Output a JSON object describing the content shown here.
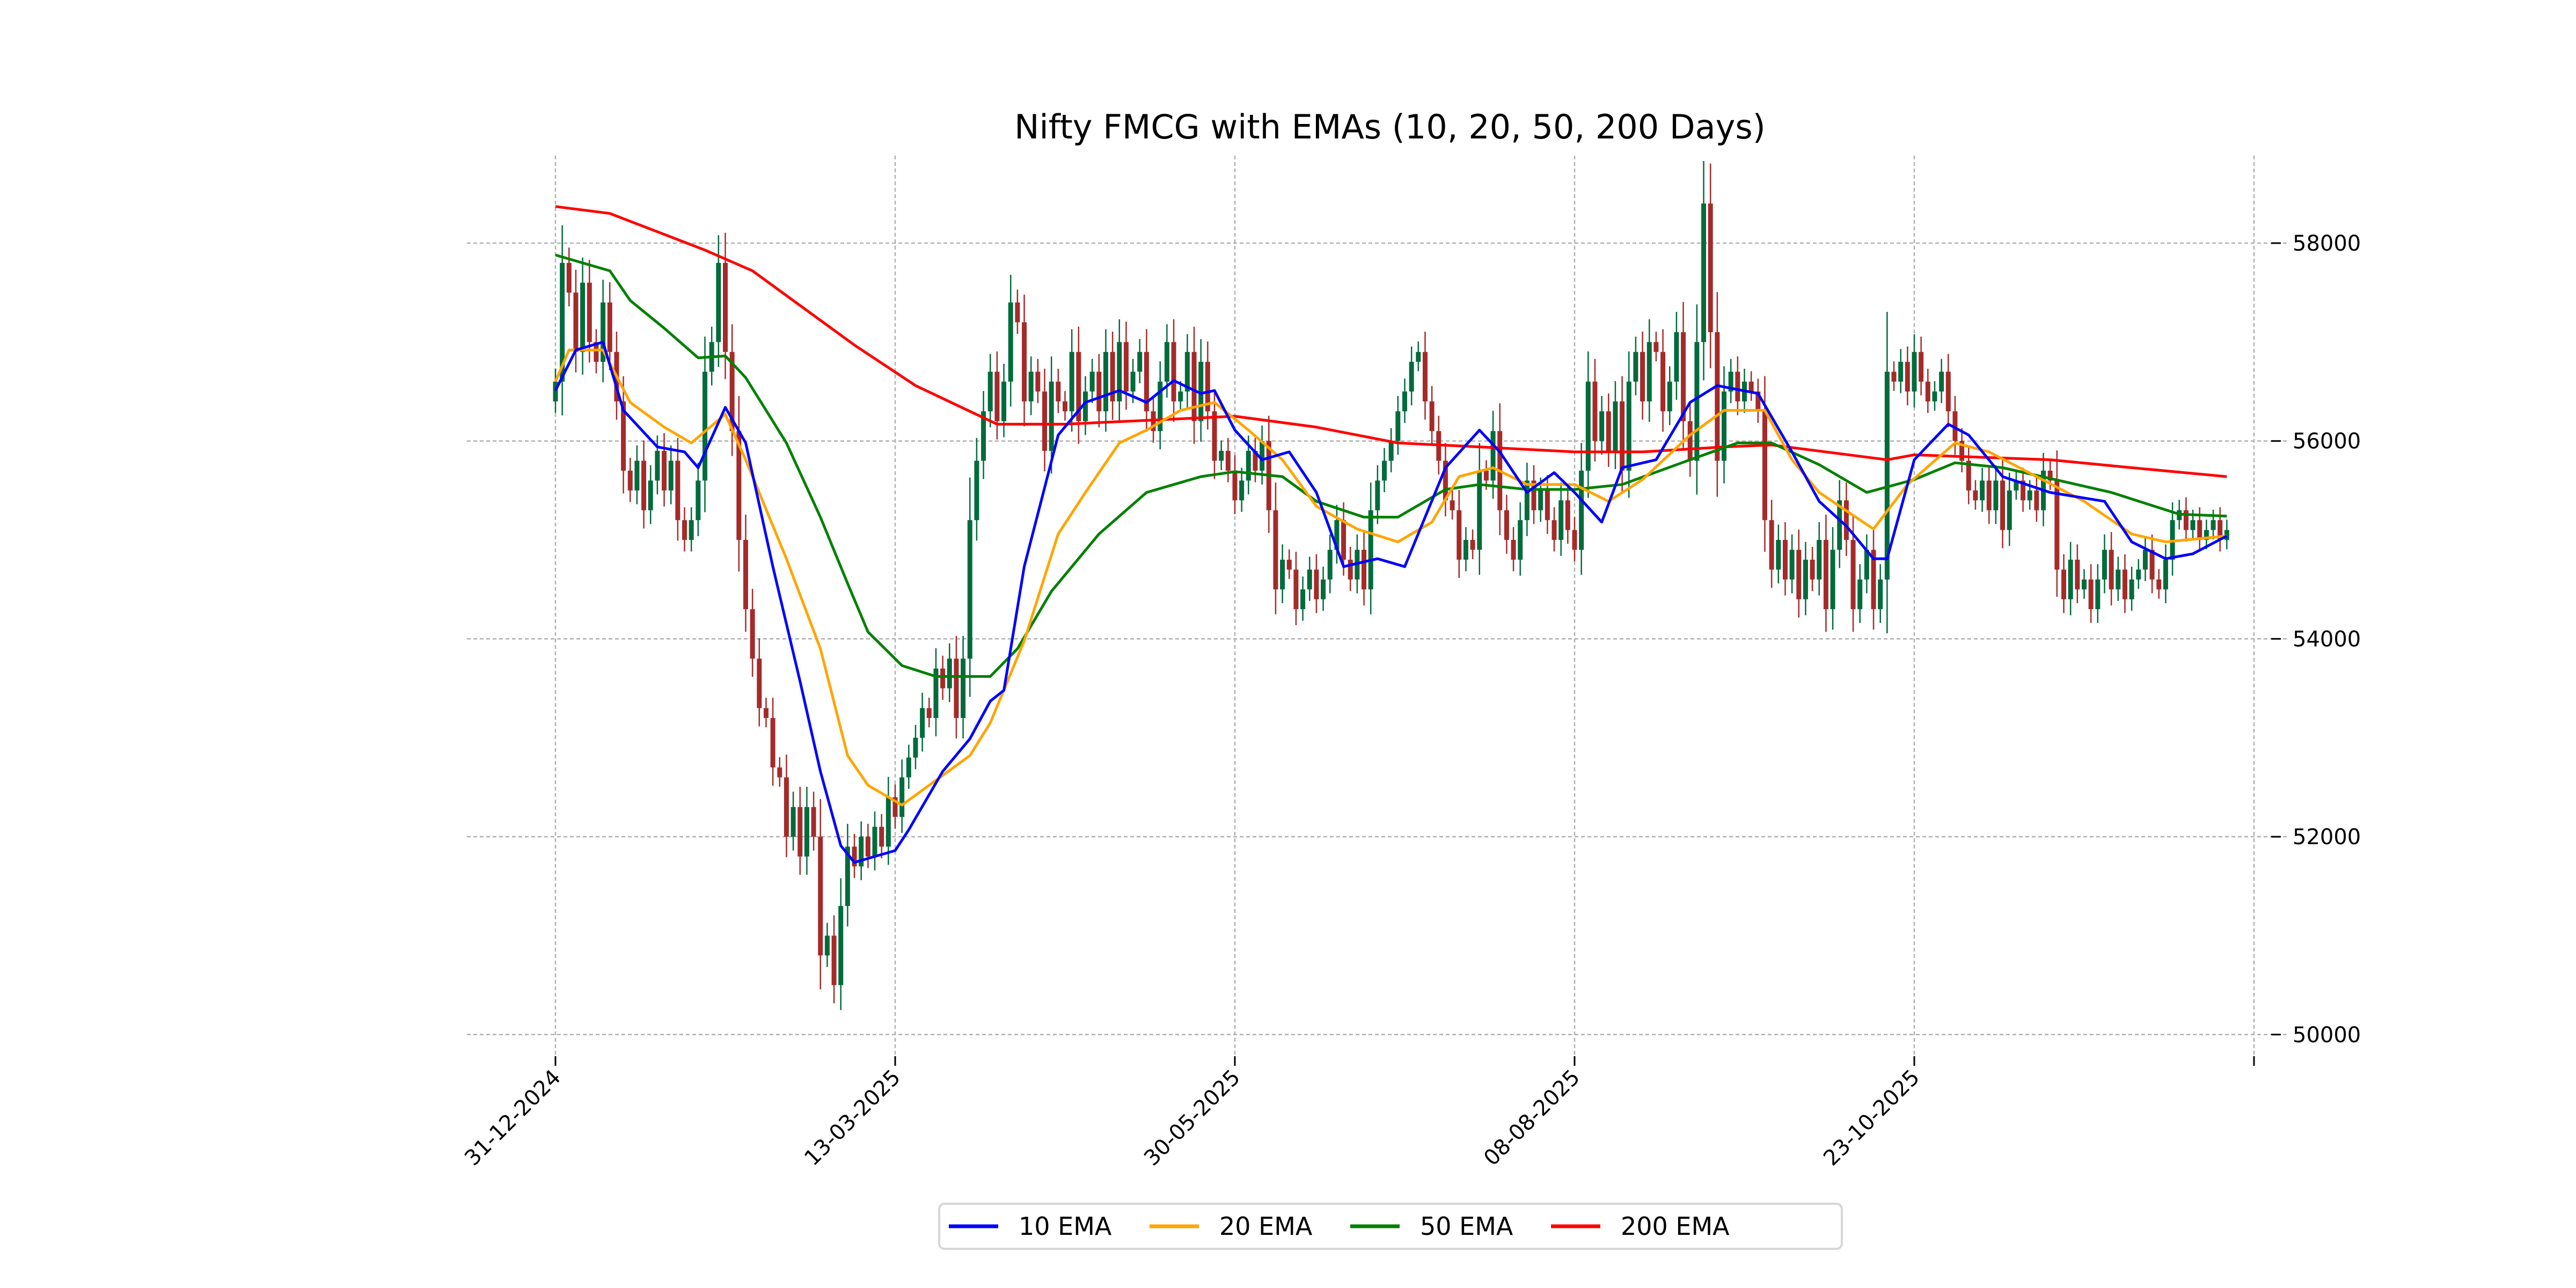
{
  "chart_data": {
    "type": "candlestick-line",
    "title": "Nifty FMCG with EMAs (10, 20, 50, 200 Days)",
    "xlabel": "",
    "ylabel": "",
    "ylim": [
      49800,
      58900
    ],
    "yticks": [
      50000,
      52000,
      54000,
      56000,
      58000
    ],
    "ytick_labels": [
      "50000",
      "52000",
      "54000",
      "56000",
      "58000"
    ],
    "xticks": [
      0,
      50,
      100,
      150,
      200,
      250
    ],
    "xtick_labels": [
      "31-12-2024",
      "13-03-2025",
      "30-05-2025",
      "08-08-2025",
      "23-10-2025",
      ""
    ],
    "xlim": [
      -4,
      254
    ],
    "grid": true,
    "legend_position": "bottom-center",
    "up_color": "#006b3c",
    "down_color": "#a52a2a",
    "first_open": 56400,
    "close": [
      56600,
      57800,
      57500,
      56900,
      57600,
      57000,
      56800,
      57400,
      56900,
      56400,
      55700,
      55500,
      55800,
      55300,
      55600,
      55900,
      55500,
      55800,
      55200,
      55000,
      55200,
      55600,
      56700,
      57000,
      57800,
      56900,
      56100,
      55000,
      54300,
      53800,
      53300,
      53200,
      52700,
      52600,
      52000,
      52300,
      51800,
      52300,
      52000,
      50800,
      51000,
      50500,
      51300,
      51900,
      51700,
      52000,
      51800,
      52100,
      51900,
      52400,
      52200,
      52600,
      52800,
      53000,
      53300,
      53200,
      53700,
      53500,
      53800,
      53200,
      53800,
      55200,
      55800,
      56300,
      56700,
      56200,
      56600,
      57400,
      57200,
      56400,
      56700,
      56500,
      55900,
      56600,
      56400,
      56300,
      56900,
      56200,
      56500,
      56700,
      56300,
      56900,
      56400,
      57000,
      56500,
      56700,
      56900,
      56300,
      56100,
      56600,
      57000,
      56400,
      56500,
      56900,
      56200,
      56800,
      56300,
      55800,
      55900,
      55700,
      55400,
      55600,
      55900,
      55700,
      56000,
      55300,
      54500,
      54800,
      54700,
      54300,
      54500,
      54700,
      54400,
      54600,
      54900,
      55200,
      54800,
      54600,
      54900,
      54500,
      55300,
      55600,
      55800,
      56000,
      56300,
      56500,
      56800,
      56900,
      56400,
      56100,
      55800,
      55400,
      55300,
      54800,
      55000,
      54900,
      55700,
      55600,
      56100,
      55300,
      55000,
      54800,
      55200,
      55600,
      55300,
      55500,
      55200,
      55000,
      55400,
      55100,
      54900,
      55700,
      56600,
      56000,
      56300,
      55900,
      56400,
      55700,
      56600,
      56900,
      56400,
      57000,
      56900,
      56300,
      56600,
      57100,
      56200,
      55800,
      57000,
      58400,
      57100,
      55800,
      56500,
      56700,
      56400,
      56600,
      56500,
      56300,
      55200,
      54700,
      55000,
      54600,
      54900,
      54400,
      54800,
      54600,
      55000,
      54300,
      54900,
      55400,
      55000,
      54300,
      54600,
      54900,
      54300,
      54600,
      56700,
      56600,
      56800,
      56500,
      56900,
      56600,
      56400,
      56500,
      56700,
      56300,
      56000,
      55800,
      55500,
      55400,
      55600,
      55300,
      55600,
      55100,
      55500,
      55600,
      55400,
      55500,
      55300,
      55700,
      55600,
      54700,
      54400,
      54800,
      54500,
      54600,
      54300,
      54600,
      54900,
      54500,
      54700,
      54400,
      54600,
      54700,
      54900,
      54600,
      54500,
      54800,
      55200,
      55300,
      55100,
      55200,
      55000,
      55100,
      55200,
      55000,
      55100
    ],
    "series": [
      {
        "name": "10 EMA",
        "color": "#0000ff",
        "points": [
          [
            0,
            56510
          ],
          [
            3,
            56920
          ],
          [
            7,
            57000
          ],
          [
            10,
            56310
          ],
          [
            15,
            55940
          ],
          [
            19,
            55890
          ],
          [
            21,
            55730
          ],
          [
            25,
            56340
          ],
          [
            28,
            55980
          ],
          [
            32,
            54730
          ],
          [
            36,
            53570
          ],
          [
            39,
            52660
          ],
          [
            42,
            51910
          ],
          [
            44,
            51740
          ],
          [
            50,
            51860
          ],
          [
            52,
            52070
          ],
          [
            57,
            52660
          ],
          [
            61,
            52990
          ],
          [
            64,
            53370
          ],
          [
            66,
            53480
          ],
          [
            69,
            54730
          ],
          [
            74,
            56060
          ],
          [
            78,
            56390
          ],
          [
            83,
            56510
          ],
          [
            87,
            56390
          ],
          [
            91,
            56610
          ],
          [
            95,
            56480
          ],
          [
            97,
            56510
          ],
          [
            100,
            56110
          ],
          [
            104,
            55810
          ],
          [
            108,
            55890
          ],
          [
            112,
            55480
          ],
          [
            116,
            54730
          ],
          [
            121,
            54810
          ],
          [
            125,
            54730
          ],
          [
            131,
            55730
          ],
          [
            136,
            56110
          ],
          [
            139,
            55890
          ],
          [
            143,
            55480
          ],
          [
            147,
            55680
          ],
          [
            150,
            55480
          ],
          [
            154,
            55180
          ],
          [
            157,
            55730
          ],
          [
            162,
            55810
          ],
          [
            167,
            56390
          ],
          [
            171,
            56560
          ],
          [
            177,
            56480
          ],
          [
            182,
            55890
          ],
          [
            186,
            55390
          ],
          [
            190,
            55140
          ],
          [
            194,
            54810
          ],
          [
            196,
            54810
          ],
          [
            200,
            55810
          ],
          [
            205,
            56170
          ],
          [
            208,
            56060
          ],
          [
            213,
            55640
          ],
          [
            220,
            55480
          ],
          [
            228,
            55390
          ],
          [
            232,
            54980
          ],
          [
            237,
            54810
          ],
          [
            241,
            54860
          ],
          [
            246,
            55040
          ]
        ]
      },
      {
        "name": "20 EMA",
        "color": "#ffa500",
        "points": [
          [
            0,
            56600
          ],
          [
            2,
            56920
          ],
          [
            7,
            56920
          ],
          [
            11,
            56390
          ],
          [
            16,
            56140
          ],
          [
            20,
            55980
          ],
          [
            25,
            56270
          ],
          [
            28,
            55810
          ],
          [
            34,
            54810
          ],
          [
            39,
            53900
          ],
          [
            43,
            52820
          ],
          [
            46,
            52520
          ],
          [
            51,
            52320
          ],
          [
            56,
            52570
          ],
          [
            61,
            52820
          ],
          [
            64,
            53150
          ],
          [
            69,
            53980
          ],
          [
            74,
            55060
          ],
          [
            78,
            55480
          ],
          [
            83,
            55980
          ],
          [
            87,
            56110
          ],
          [
            92,
            56310
          ],
          [
            97,
            56390
          ],
          [
            102,
            56110
          ],
          [
            107,
            55810
          ],
          [
            112,
            55340
          ],
          [
            118,
            55110
          ],
          [
            124,
            54980
          ],
          [
            129,
            55180
          ],
          [
            133,
            55640
          ],
          [
            138,
            55730
          ],
          [
            143,
            55560
          ],
          [
            150,
            55560
          ],
          [
            155,
            55390
          ],
          [
            160,
            55610
          ],
          [
            167,
            56060
          ],
          [
            172,
            56310
          ],
          [
            178,
            56310
          ],
          [
            182,
            55810
          ],
          [
            186,
            55480
          ],
          [
            194,
            55110
          ],
          [
            199,
            55560
          ],
          [
            206,
            55980
          ],
          [
            211,
            55890
          ],
          [
            218,
            55640
          ],
          [
            225,
            55390
          ],
          [
            232,
            55060
          ],
          [
            237,
            54980
          ],
          [
            246,
            55040
          ]
        ]
      },
      {
        "name": "50 EMA",
        "color": "#008000",
        "points": [
          [
            0,
            57880
          ],
          [
            4,
            57800
          ],
          [
            8,
            57720
          ],
          [
            11,
            57420
          ],
          [
            16,
            57140
          ],
          [
            21,
            56840
          ],
          [
            25,
            56860
          ],
          [
            28,
            56640
          ],
          [
            34,
            55980
          ],
          [
            39,
            55230
          ],
          [
            43,
            54560
          ],
          [
            46,
            54070
          ],
          [
            51,
            53730
          ],
          [
            56,
            53620
          ],
          [
            64,
            53620
          ],
          [
            68,
            53900
          ],
          [
            73,
            54480
          ],
          [
            80,
            55060
          ],
          [
            87,
            55480
          ],
          [
            95,
            55640
          ],
          [
            100,
            55690
          ],
          [
            107,
            55640
          ],
          [
            112,
            55390
          ],
          [
            119,
            55230
          ],
          [
            124,
            55230
          ],
          [
            131,
            55510
          ],
          [
            136,
            55560
          ],
          [
            143,
            55510
          ],
          [
            150,
            55510
          ],
          [
            157,
            55560
          ],
          [
            167,
            55810
          ],
          [
            174,
            55980
          ],
          [
            179,
            55980
          ],
          [
            186,
            55760
          ],
          [
            193,
            55480
          ],
          [
            200,
            55610
          ],
          [
            206,
            55780
          ],
          [
            213,
            55730
          ],
          [
            222,
            55590
          ],
          [
            229,
            55480
          ],
          [
            239,
            55260
          ],
          [
            246,
            55240
          ]
        ]
      },
      {
        "name": "200 EMA",
        "color": "#ff0000",
        "points": [
          [
            0,
            58370
          ],
          [
            8,
            58300
          ],
          [
            22,
            57930
          ],
          [
            29,
            57720
          ],
          [
            39,
            57220
          ],
          [
            44,
            56970
          ],
          [
            53,
            56560
          ],
          [
            65,
            56170
          ],
          [
            75,
            56170
          ],
          [
            100,
            56250
          ],
          [
            112,
            56140
          ],
          [
            124,
            55980
          ],
          [
            136,
            55940
          ],
          [
            150,
            55890
          ],
          [
            160,
            55890
          ],
          [
            172,
            55940
          ],
          [
            179,
            55960
          ],
          [
            196,
            55810
          ],
          [
            200,
            55860
          ],
          [
            220,
            55810
          ],
          [
            232,
            55730
          ],
          [
            246,
            55640
          ]
        ]
      }
    ],
    "legend": [
      "10 EMA",
      "20 EMA",
      "50 EMA",
      "200 EMA"
    ]
  }
}
